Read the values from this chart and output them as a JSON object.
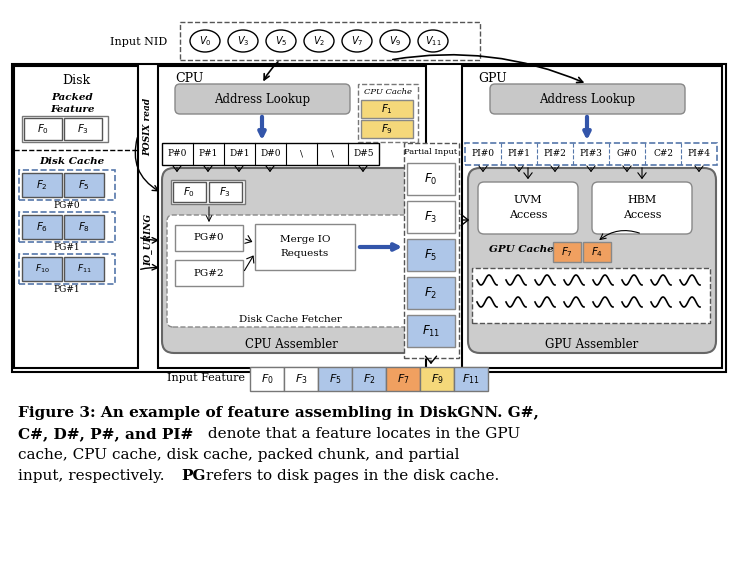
{
  "bg": "#ffffff",
  "blue_cell": "#aec6e8",
  "yellow_cell": "#f5d87a",
  "orange_cell": "#f0a060",
  "gray_assembler": "#cccccc",
  "light_gray_box": "#d8d8d8",
  "addr_lookup_gray": "#c8c8c8",
  "dashed_blue": "#5577aa",
  "nid_labels": [
    "V_0",
    "V_3",
    "V_5",
    "V_2",
    "V_7",
    "V_9",
    "V_{11}"
  ],
  "cpu_addr": [
    "P#0",
    "P#1",
    "D#1",
    "D#0",
    "\\",
    "\\",
    "D#5"
  ],
  "gpu_addr": [
    "PI#0",
    "PI#1",
    "PI#2",
    "PI#3",
    "G#0",
    "C#2",
    "PI#4"
  ],
  "feat_labels": [
    "F_0",
    "F_3",
    "F_5",
    "F_2",
    "F_7",
    "F_9",
    "F_{11}"
  ],
  "feat_colors": [
    "#ffffff",
    "#ffffff",
    "#aec6e8",
    "#aec6e8",
    "#f0a060",
    "#f5d87a",
    "#aec6e8"
  ],
  "partial_labels": [
    "F_0",
    "F_3",
    "F_5",
    "F_2",
    "F_{11}"
  ],
  "partial_colors": [
    "#ffffff",
    "#ffffff",
    "#aec6e8",
    "#aec6e8",
    "#aec6e8"
  ]
}
